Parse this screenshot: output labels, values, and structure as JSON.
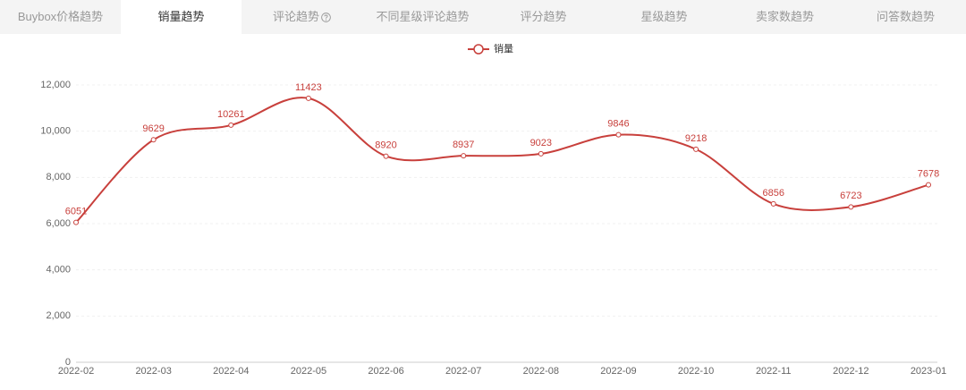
{
  "tabs": [
    "Buybox价格趋势",
    "销量趋势",
    "评论趋势",
    "不同星级评论趋势",
    "评分趋势",
    "星级趋势",
    "卖家数趋势",
    "问答数趋势"
  ],
  "active_tab": 1,
  "chart_data": {
    "type": "line",
    "categories": [
      "2022-02",
      "2022-03",
      "2022-04",
      "2022-05",
      "2022-06",
      "2022-07",
      "2022-08",
      "2022-09",
      "2022-10",
      "2022-11",
      "2022-12",
      "2023-01"
    ],
    "series": [
      {
        "name": "销量",
        "color": "#c8403c",
        "values": [
          6051,
          9629,
          10261,
          11423,
          8920,
          8937,
          9023,
          9846,
          9218,
          6856,
          6723,
          7678
        ]
      }
    ],
    "ylim": [
      0,
      12000
    ],
    "yticks": [
      0,
      {
        "value": 2000,
        "label": "2,000"
      },
      {
        "value": 4000,
        "label": "4,000"
      },
      {
        "value": 6000,
        "label": "6,000"
      },
      {
        "value": 8000,
        "label": "8,000"
      },
      {
        "value": 10000,
        "label": "10,000"
      },
      {
        "value": 12000,
        "label": "12,000"
      }
    ],
    "grid": true,
    "smooth": true,
    "legend": "top"
  }
}
